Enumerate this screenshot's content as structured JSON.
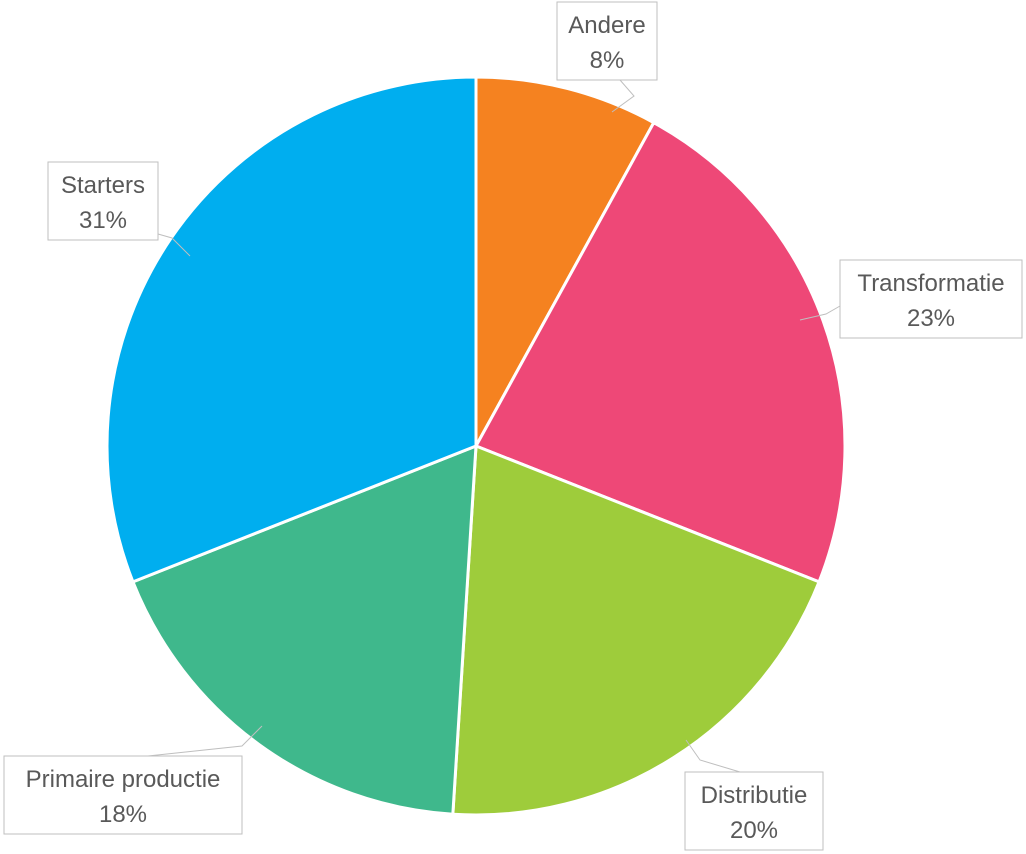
{
  "chart_data": {
    "type": "pie",
    "title": "",
    "slices": [
      {
        "name": "Andere",
        "value": 8,
        "label": "8%",
        "color": "#F58220"
      },
      {
        "name": "Transformatie",
        "value": 23,
        "label": "23%",
        "color": "#EE4877"
      },
      {
        "name": "Distributie",
        "value": 20,
        "label": "20%",
        "color": "#9ECC3B"
      },
      {
        "name": "Primaire productie",
        "value": 18,
        "label": "18%",
        "color": "#3FB88C"
      },
      {
        "name": "Starters",
        "value": 31,
        "label": "31%",
        "color": "#00AEEF"
      }
    ],
    "start_angle": "12 o'clock",
    "direction": "clockwise",
    "legend": "none",
    "data_labels": "callouts"
  }
}
